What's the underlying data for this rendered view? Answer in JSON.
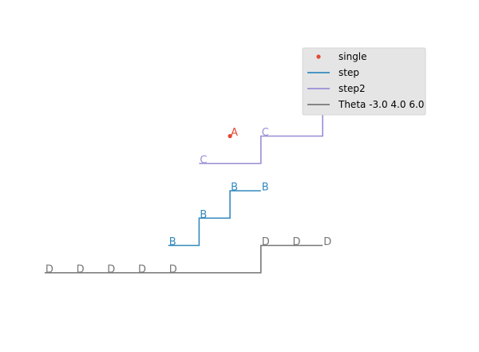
{
  "chart_data": {
    "type": "line",
    "title": "",
    "xlabel": "",
    "ylabel": "",
    "axes_visible": false,
    "grid": false,
    "legend_placement": "top-right",
    "series": [
      {
        "name": "single",
        "kind": "point",
        "color": "#E24A33",
        "points": [
          {
            "x": 3,
            "y": 4,
            "label": "A"
          }
        ]
      },
      {
        "name": "step",
        "kind": "step",
        "color": "#348ABD",
        "points": [
          {
            "x": 1,
            "y": 2,
            "label": "B"
          },
          {
            "x": 2,
            "y": 2.5,
            "label": "B"
          },
          {
            "x": 3,
            "y": 3,
            "label": "B"
          },
          {
            "x": 4,
            "y": 3,
            "label": "B"
          }
        ]
      },
      {
        "name": "step2",
        "kind": "step",
        "color": "#988ED5",
        "points": [
          {
            "x": 2,
            "y": 3.5,
            "label": "C"
          },
          {
            "x": 4,
            "y": 4,
            "label": "C"
          },
          {
            "x": 6,
            "y": 4.5,
            "label": "C"
          },
          {
            "x": 8,
            "y": 4.5,
            "label": "C"
          }
        ]
      },
      {
        "name": "Theta -3.0 4.0 6.0",
        "kind": "step",
        "color": "#777777",
        "points": [
          {
            "x": -3,
            "y": 1.5,
            "label": "D"
          },
          {
            "x": -2,
            "y": 1.5,
            "label": "D"
          },
          {
            "x": -1,
            "y": 1.5,
            "label": "D"
          },
          {
            "x": 0,
            "y": 1.5,
            "label": "D"
          },
          {
            "x": 1,
            "y": 1.5,
            "label": "D"
          },
          {
            "x": 4,
            "y": 2,
            "label": "D"
          },
          {
            "x": 5,
            "y": 2,
            "label": "D"
          },
          {
            "x": 6,
            "y": 2,
            "label": "D"
          }
        ]
      }
    ]
  }
}
